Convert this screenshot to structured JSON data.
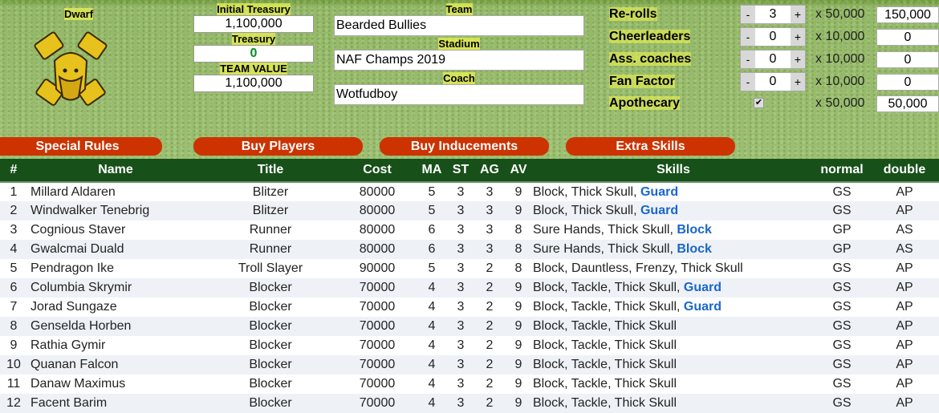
{
  "race": "Dwarf",
  "treasury": {
    "initial_label": "Initial Treasury",
    "initial": "1,100,000",
    "treasury_label": "Treasury",
    "treasury": "0",
    "tv_label": "TEAM VALUE",
    "tv": "1,100,000"
  },
  "team": {
    "team_label": "Team",
    "team": "Bearded Bullies",
    "stadium_label": "Stadium",
    "stadium": "NAF Champs 2019",
    "coach_label": "Coach",
    "coach": "Wotfudboy"
  },
  "extras": [
    {
      "label": "Re-rolls",
      "value": "3",
      "mult": "x 50,000",
      "total": "150,000"
    },
    {
      "label": "Cheerleaders",
      "value": "0",
      "mult": "x 10,000",
      "total": "0"
    },
    {
      "label": "Ass. coaches",
      "value": "0",
      "mult": "x 10,000",
      "total": "0"
    },
    {
      "label": "Fan Factor",
      "value": "0",
      "mult": "x 10,000",
      "total": "0"
    },
    {
      "label": "Apothecary",
      "checked": true,
      "mult": "x 50,000",
      "total": "50,000"
    }
  ],
  "stepper": {
    "minus": "-",
    "plus": "+"
  },
  "buttons": [
    "Special Rules",
    "Buy Players",
    "Buy Inducements",
    "Extra Skills"
  ],
  "columns": [
    "#",
    "Name",
    "Title",
    "Cost",
    "MA",
    "ST",
    "AG",
    "AV",
    "Skills",
    "normal",
    "double"
  ],
  "players": [
    {
      "n": "1",
      "name": "Millard Aldaren",
      "title": "Blitzer",
      "cost": "80000",
      "ma": "5",
      "st": "3",
      "ag": "3",
      "av": "9",
      "skills": "Block, Thick Skull, ",
      "extra": "Guard",
      "normal": "GS",
      "double": "AP"
    },
    {
      "n": "2",
      "name": "Windwalker Tenebrig",
      "title": "Blitzer",
      "cost": "80000",
      "ma": "5",
      "st": "3",
      "ag": "3",
      "av": "9",
      "skills": "Block, Thick Skull, ",
      "extra": "Guard",
      "normal": "GS",
      "double": "AP"
    },
    {
      "n": "3",
      "name": "Cognious Staver",
      "title": "Runner",
      "cost": "80000",
      "ma": "6",
      "st": "3",
      "ag": "3",
      "av": "8",
      "skills": "Sure Hands, Thick Skull, ",
      "extra": "Block",
      "normal": "GP",
      "double": "AS"
    },
    {
      "n": "4",
      "name": "Gwalcmai Duald",
      "title": "Runner",
      "cost": "80000",
      "ma": "6",
      "st": "3",
      "ag": "3",
      "av": "8",
      "skills": "Sure Hands, Thick Skull, ",
      "extra": "Block",
      "normal": "GP",
      "double": "AS"
    },
    {
      "n": "5",
      "name": "Pendragon Ike",
      "title": "Troll Slayer",
      "cost": "90000",
      "ma": "5",
      "st": "3",
      "ag": "2",
      "av": "8",
      "skills": "Block, Dauntless, Frenzy, Thick Skull",
      "extra": "",
      "normal": "GS",
      "double": "AP"
    },
    {
      "n": "6",
      "name": "Columbia Skrymir",
      "title": "Blocker",
      "cost": "70000",
      "ma": "4",
      "st": "3",
      "ag": "2",
      "av": "9",
      "skills": "Block, Tackle, Thick Skull, ",
      "extra": "Guard",
      "normal": "GS",
      "double": "AP"
    },
    {
      "n": "7",
      "name": "Jorad Sungaze",
      "title": "Blocker",
      "cost": "70000",
      "ma": "4",
      "st": "3",
      "ag": "2",
      "av": "9",
      "skills": "Block, Tackle, Thick Skull, ",
      "extra": "Guard",
      "normal": "GS",
      "double": "AP"
    },
    {
      "n": "8",
      "name": "Genselda Horben",
      "title": "Blocker",
      "cost": "70000",
      "ma": "4",
      "st": "3",
      "ag": "2",
      "av": "9",
      "skills": "Block, Tackle, Thick Skull",
      "extra": "",
      "normal": "GS",
      "double": "AP"
    },
    {
      "n": "9",
      "name": "Rathia Gymir",
      "title": "Blocker",
      "cost": "70000",
      "ma": "4",
      "st": "3",
      "ag": "2",
      "av": "9",
      "skills": "Block, Tackle, Thick Skull",
      "extra": "",
      "normal": "GS",
      "double": "AP"
    },
    {
      "n": "10",
      "name": "Quanan Falcon",
      "title": "Blocker",
      "cost": "70000",
      "ma": "4",
      "st": "3",
      "ag": "2",
      "av": "9",
      "skills": "Block, Tackle, Thick Skull",
      "extra": "",
      "normal": "GS",
      "double": "AP"
    },
    {
      "n": "11",
      "name": "Danaw Maximus",
      "title": "Blocker",
      "cost": "70000",
      "ma": "4",
      "st": "3",
      "ag": "2",
      "av": "9",
      "skills": "Block, Tackle, Thick Skull",
      "extra": "",
      "normal": "GS",
      "double": "AP"
    },
    {
      "n": "12",
      "name": "Facent Barim",
      "title": "Blocker",
      "cost": "70000",
      "ma": "4",
      "st": "3",
      "ag": "2",
      "av": "9",
      "skills": "Block, Tackle, Thick Skull",
      "extra": "",
      "normal": "GS",
      "double": "AP"
    }
  ]
}
